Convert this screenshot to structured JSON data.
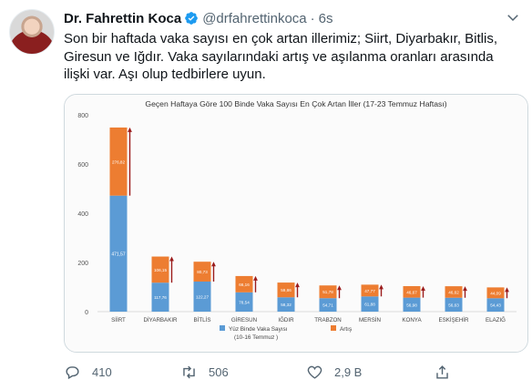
{
  "tweet": {
    "author_name": "Dr. Fahrettin Koca",
    "handle": "@drfahrettinkoca",
    "separator": "·",
    "time": "6s",
    "text": "Son bir haftada vaka sayısı en çok artan illerimiz; Siirt, Diyarbakır, Bitlis, Giresun ve Iğdır. Vaka sayılarındaki artış ve aşılanma oranları arasında ilişki var. Aşı olup tedbirlere uyun.",
    "replies": "410",
    "retweets": "506",
    "likes": "2,9 B"
  },
  "colors": {
    "base": "#5b9bd5",
    "increase": "#ed7d31",
    "arrow": "#9b1c1c",
    "verified": "#1d9bf0",
    "icon": "#536471"
  },
  "icons": {
    "reply": "reply-icon",
    "retweet": "retweet-icon",
    "like": "heart-icon",
    "share": "share-icon",
    "more": "chevron-down-icon",
    "badge": "verified-badge-icon"
  },
  "chart_data": {
    "type": "bar",
    "stacked": true,
    "title": "Geçen Haftaya Göre 100 Binde Vaka Sayısı En Çok Artan İller (17-23 Temmuz Haftası)",
    "categories": [
      "SİİRT",
      "DİYARBAKIR",
      "BİTLİS",
      "GİRESUN",
      "IĞDIR",
      "TRABZON",
      "MERSİN",
      "KONYA",
      "ESKİŞEHİR",
      "ELAZIĞ"
    ],
    "series": [
      {
        "name": "Yüz Binde Vaka Sayısı (10-16 Temmuz )",
        "values": [
          471.57,
          117.76,
          122.27,
          78.54,
          58.32,
          54.71,
          61.88,
          56.98,
          56.63,
          54.43
        ],
        "labels": [
          "471,57",
          "117,76",
          "122,27",
          "78,54",
          "58,32",
          "54,71",
          "61,88",
          "56,98",
          "56,63",
          "54,43"
        ]
      },
      {
        "name": "Artış",
        "values": [
          276.82,
          106.15,
          80.73,
          66.16,
          59.86,
          51.78,
          47.77,
          46.67,
          46.62,
          44.09
        ],
        "labels": [
          "276,82",
          "106,15",
          "80,73",
          "66,16",
          "59,86",
          "51,78",
          "47,77",
          "46,67",
          "46,62",
          "44,09"
        ]
      }
    ],
    "yticks": [
      "0",
      "200",
      "400",
      "600",
      "800"
    ],
    "ylim": [
      0,
      800
    ],
    "grid": false,
    "legend": "bottom"
  }
}
